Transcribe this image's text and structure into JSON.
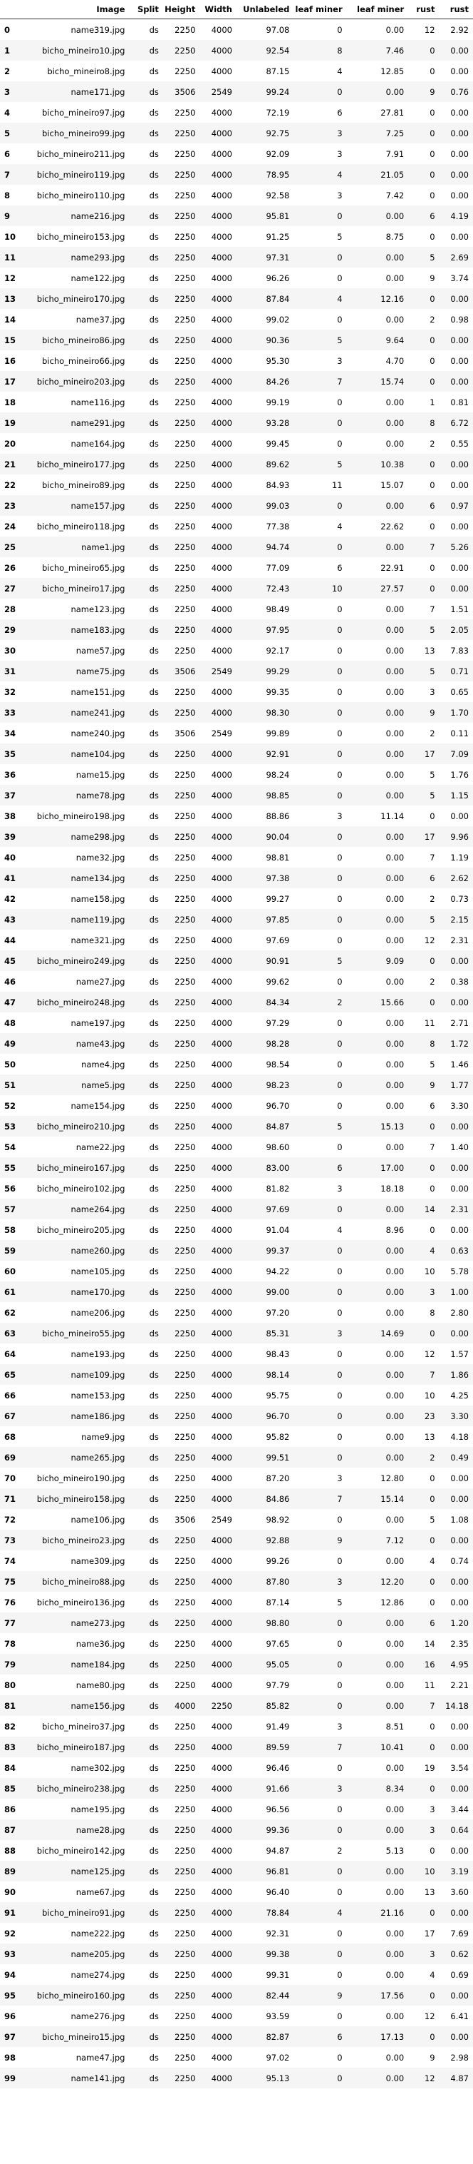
{
  "columns": [
    "",
    "Image",
    "Split",
    "Height",
    "Width",
    "Unlabeled",
    "leaf miner",
    "leaf miner",
    "rust",
    "rust"
  ],
  "rows": [
    [
      "0",
      "name319.jpg",
      "ds",
      "2250",
      "4000",
      "97.08",
      "0",
      "0.00",
      "12",
      "2.92"
    ],
    [
      "1",
      "bicho_mineiro10.jpg",
      "ds",
      "2250",
      "4000",
      "92.54",
      "8",
      "7.46",
      "0",
      "0.00"
    ],
    [
      "2",
      "bicho_mineiro8.jpg",
      "ds",
      "2250",
      "4000",
      "87.15",
      "4",
      "12.85",
      "0",
      "0.00"
    ],
    [
      "3",
      "name171.jpg",
      "ds",
      "3506",
      "2549",
      "99.24",
      "0",
      "0.00",
      "9",
      "0.76"
    ],
    [
      "4",
      "bicho_mineiro97.jpg",
      "ds",
      "2250",
      "4000",
      "72.19",
      "6",
      "27.81",
      "0",
      "0.00"
    ],
    [
      "5",
      "bicho_mineiro99.jpg",
      "ds",
      "2250",
      "4000",
      "92.75",
      "3",
      "7.25",
      "0",
      "0.00"
    ],
    [
      "6",
      "bicho_mineiro211.jpg",
      "ds",
      "2250",
      "4000",
      "92.09",
      "3",
      "7.91",
      "0",
      "0.00"
    ],
    [
      "7",
      "bicho_mineiro119.jpg",
      "ds",
      "2250",
      "4000",
      "78.95",
      "4",
      "21.05",
      "0",
      "0.00"
    ],
    [
      "8",
      "bicho_mineiro110.jpg",
      "ds",
      "2250",
      "4000",
      "92.58",
      "3",
      "7.42",
      "0",
      "0.00"
    ],
    [
      "9",
      "name216.jpg",
      "ds",
      "2250",
      "4000",
      "95.81",
      "0",
      "0.00",
      "6",
      "4.19"
    ],
    [
      "10",
      "bicho_mineiro153.jpg",
      "ds",
      "2250",
      "4000",
      "91.25",
      "5",
      "8.75",
      "0",
      "0.00"
    ],
    [
      "11",
      "name293.jpg",
      "ds",
      "2250",
      "4000",
      "97.31",
      "0",
      "0.00",
      "5",
      "2.69"
    ],
    [
      "12",
      "name122.jpg",
      "ds",
      "2250",
      "4000",
      "96.26",
      "0",
      "0.00",
      "9",
      "3.74"
    ],
    [
      "13",
      "bicho_mineiro170.jpg",
      "ds",
      "2250",
      "4000",
      "87.84",
      "4",
      "12.16",
      "0",
      "0.00"
    ],
    [
      "14",
      "name37.jpg",
      "ds",
      "2250",
      "4000",
      "99.02",
      "0",
      "0.00",
      "2",
      "0.98"
    ],
    [
      "15",
      "bicho_mineiro86.jpg",
      "ds",
      "2250",
      "4000",
      "90.36",
      "5",
      "9.64",
      "0",
      "0.00"
    ],
    [
      "16",
      "bicho_mineiro66.jpg",
      "ds",
      "2250",
      "4000",
      "95.30",
      "3",
      "4.70",
      "0",
      "0.00"
    ],
    [
      "17",
      "bicho_mineiro203.jpg",
      "ds",
      "2250",
      "4000",
      "84.26",
      "7",
      "15.74",
      "0",
      "0.00"
    ],
    [
      "18",
      "name116.jpg",
      "ds",
      "2250",
      "4000",
      "99.19",
      "0",
      "0.00",
      "1",
      "0.81"
    ],
    [
      "19",
      "name291.jpg",
      "ds",
      "2250",
      "4000",
      "93.28",
      "0",
      "0.00",
      "8",
      "6.72"
    ],
    [
      "20",
      "name164.jpg",
      "ds",
      "2250",
      "4000",
      "99.45",
      "0",
      "0.00",
      "2",
      "0.55"
    ],
    [
      "21",
      "bicho_mineiro177.jpg",
      "ds",
      "2250",
      "4000",
      "89.62",
      "5",
      "10.38",
      "0",
      "0.00"
    ],
    [
      "22",
      "bicho_mineiro89.jpg",
      "ds",
      "2250",
      "4000",
      "84.93",
      "11",
      "15.07",
      "0",
      "0.00"
    ],
    [
      "23",
      "name157.jpg",
      "ds",
      "2250",
      "4000",
      "99.03",
      "0",
      "0.00",
      "6",
      "0.97"
    ],
    [
      "24",
      "bicho_mineiro118.jpg",
      "ds",
      "2250",
      "4000",
      "77.38",
      "4",
      "22.62",
      "0",
      "0.00"
    ],
    [
      "25",
      "name1.jpg",
      "ds",
      "2250",
      "4000",
      "94.74",
      "0",
      "0.00",
      "7",
      "5.26"
    ],
    [
      "26",
      "bicho_mineiro65.jpg",
      "ds",
      "2250",
      "4000",
      "77.09",
      "6",
      "22.91",
      "0",
      "0.00"
    ],
    [
      "27",
      "bicho_mineiro17.jpg",
      "ds",
      "2250",
      "4000",
      "72.43",
      "10",
      "27.57",
      "0",
      "0.00"
    ],
    [
      "28",
      "name123.jpg",
      "ds",
      "2250",
      "4000",
      "98.49",
      "0",
      "0.00",
      "7",
      "1.51"
    ],
    [
      "29",
      "name183.jpg",
      "ds",
      "2250",
      "4000",
      "97.95",
      "0",
      "0.00",
      "5",
      "2.05"
    ],
    [
      "30",
      "name57.jpg",
      "ds",
      "2250",
      "4000",
      "92.17",
      "0",
      "0.00",
      "13",
      "7.83"
    ],
    [
      "31",
      "name75.jpg",
      "ds",
      "3506",
      "2549",
      "99.29",
      "0",
      "0.00",
      "5",
      "0.71"
    ],
    [
      "32",
      "name151.jpg",
      "ds",
      "2250",
      "4000",
      "99.35",
      "0",
      "0.00",
      "3",
      "0.65"
    ],
    [
      "33",
      "name241.jpg",
      "ds",
      "2250",
      "4000",
      "98.30",
      "0",
      "0.00",
      "9",
      "1.70"
    ],
    [
      "34",
      "name240.jpg",
      "ds",
      "3506",
      "2549",
      "99.89",
      "0",
      "0.00",
      "2",
      "0.11"
    ],
    [
      "35",
      "name104.jpg",
      "ds",
      "2250",
      "4000",
      "92.91",
      "0",
      "0.00",
      "17",
      "7.09"
    ],
    [
      "36",
      "name15.jpg",
      "ds",
      "2250",
      "4000",
      "98.24",
      "0",
      "0.00",
      "5",
      "1.76"
    ],
    [
      "37",
      "name78.jpg",
      "ds",
      "2250",
      "4000",
      "98.85",
      "0",
      "0.00",
      "5",
      "1.15"
    ],
    [
      "38",
      "bicho_mineiro198.jpg",
      "ds",
      "2250",
      "4000",
      "88.86",
      "3",
      "11.14",
      "0",
      "0.00"
    ],
    [
      "39",
      "name298.jpg",
      "ds",
      "2250",
      "4000",
      "90.04",
      "0",
      "0.00",
      "17",
      "9.96"
    ],
    [
      "40",
      "name32.jpg",
      "ds",
      "2250",
      "4000",
      "98.81",
      "0",
      "0.00",
      "7",
      "1.19"
    ],
    [
      "41",
      "name134.jpg",
      "ds",
      "2250",
      "4000",
      "97.38",
      "0",
      "0.00",
      "6",
      "2.62"
    ],
    [
      "42",
      "name158.jpg",
      "ds",
      "2250",
      "4000",
      "99.27",
      "0",
      "0.00",
      "2",
      "0.73"
    ],
    [
      "43",
      "name119.jpg",
      "ds",
      "2250",
      "4000",
      "97.85",
      "0",
      "0.00",
      "5",
      "2.15"
    ],
    [
      "44",
      "name321.jpg",
      "ds",
      "2250",
      "4000",
      "97.69",
      "0",
      "0.00",
      "12",
      "2.31"
    ],
    [
      "45",
      "bicho_mineiro249.jpg",
      "ds",
      "2250",
      "4000",
      "90.91",
      "5",
      "9.09",
      "0",
      "0.00"
    ],
    [
      "46",
      "name27.jpg",
      "ds",
      "2250",
      "4000",
      "99.62",
      "0",
      "0.00",
      "2",
      "0.38"
    ],
    [
      "47",
      "bicho_mineiro248.jpg",
      "ds",
      "2250",
      "4000",
      "84.34",
      "2",
      "15.66",
      "0",
      "0.00"
    ],
    [
      "48",
      "name197.jpg",
      "ds",
      "2250",
      "4000",
      "97.29",
      "0",
      "0.00",
      "11",
      "2.71"
    ],
    [
      "49",
      "name43.jpg",
      "ds",
      "2250",
      "4000",
      "98.28",
      "0",
      "0.00",
      "8",
      "1.72"
    ],
    [
      "50",
      "name4.jpg",
      "ds",
      "2250",
      "4000",
      "98.54",
      "0",
      "0.00",
      "5",
      "1.46"
    ],
    [
      "51",
      "name5.jpg",
      "ds",
      "2250",
      "4000",
      "98.23",
      "0",
      "0.00",
      "9",
      "1.77"
    ],
    [
      "52",
      "name154.jpg",
      "ds",
      "2250",
      "4000",
      "96.70",
      "0",
      "0.00",
      "6",
      "3.30"
    ],
    [
      "53",
      "bicho_mineiro210.jpg",
      "ds",
      "2250",
      "4000",
      "84.87",
      "5",
      "15.13",
      "0",
      "0.00"
    ],
    [
      "54",
      "name22.jpg",
      "ds",
      "2250",
      "4000",
      "98.60",
      "0",
      "0.00",
      "7",
      "1.40"
    ],
    [
      "55",
      "bicho_mineiro167.jpg",
      "ds",
      "2250",
      "4000",
      "83.00",
      "6",
      "17.00",
      "0",
      "0.00"
    ],
    [
      "56",
      "bicho_mineiro102.jpg",
      "ds",
      "2250",
      "4000",
      "81.82",
      "3",
      "18.18",
      "0",
      "0.00"
    ],
    [
      "57",
      "name264.jpg",
      "ds",
      "2250",
      "4000",
      "97.69",
      "0",
      "0.00",
      "14",
      "2.31"
    ],
    [
      "58",
      "bicho_mineiro205.jpg",
      "ds",
      "2250",
      "4000",
      "91.04",
      "4",
      "8.96",
      "0",
      "0.00"
    ],
    [
      "59",
      "name260.jpg",
      "ds",
      "2250",
      "4000",
      "99.37",
      "0",
      "0.00",
      "4",
      "0.63"
    ],
    [
      "60",
      "name105.jpg",
      "ds",
      "2250",
      "4000",
      "94.22",
      "0",
      "0.00",
      "10",
      "5.78"
    ],
    [
      "61",
      "name170.jpg",
      "ds",
      "2250",
      "4000",
      "99.00",
      "0",
      "0.00",
      "3",
      "1.00"
    ],
    [
      "62",
      "name206.jpg",
      "ds",
      "2250",
      "4000",
      "97.20",
      "0",
      "0.00",
      "8",
      "2.80"
    ],
    [
      "63",
      "bicho_mineiro55.jpg",
      "ds",
      "2250",
      "4000",
      "85.31",
      "3",
      "14.69",
      "0",
      "0.00"
    ],
    [
      "64",
      "name193.jpg",
      "ds",
      "2250",
      "4000",
      "98.43",
      "0",
      "0.00",
      "12",
      "1.57"
    ],
    [
      "65",
      "name109.jpg",
      "ds",
      "2250",
      "4000",
      "98.14",
      "0",
      "0.00",
      "7",
      "1.86"
    ],
    [
      "66",
      "name153.jpg",
      "ds",
      "2250",
      "4000",
      "95.75",
      "0",
      "0.00",
      "10",
      "4.25"
    ],
    [
      "67",
      "name186.jpg",
      "ds",
      "2250",
      "4000",
      "96.70",
      "0",
      "0.00",
      "23",
      "3.30"
    ],
    [
      "68",
      "name9.jpg",
      "ds",
      "2250",
      "4000",
      "95.82",
      "0",
      "0.00",
      "13",
      "4.18"
    ],
    [
      "69",
      "name265.jpg",
      "ds",
      "2250",
      "4000",
      "99.51",
      "0",
      "0.00",
      "2",
      "0.49"
    ],
    [
      "70",
      "bicho_mineiro190.jpg",
      "ds",
      "2250",
      "4000",
      "87.20",
      "3",
      "12.80",
      "0",
      "0.00"
    ],
    [
      "71",
      "bicho_mineiro158.jpg",
      "ds",
      "2250",
      "4000",
      "84.86",
      "7",
      "15.14",
      "0",
      "0.00"
    ],
    [
      "72",
      "name106.jpg",
      "ds",
      "3506",
      "2549",
      "98.92",
      "0",
      "0.00",
      "5",
      "1.08"
    ],
    [
      "73",
      "bicho_mineiro23.jpg",
      "ds",
      "2250",
      "4000",
      "92.88",
      "9",
      "7.12",
      "0",
      "0.00"
    ],
    [
      "74",
      "name309.jpg",
      "ds",
      "2250",
      "4000",
      "99.26",
      "0",
      "0.00",
      "4",
      "0.74"
    ],
    [
      "75",
      "bicho_mineiro88.jpg",
      "ds",
      "2250",
      "4000",
      "87.80",
      "3",
      "12.20",
      "0",
      "0.00"
    ],
    [
      "76",
      "bicho_mineiro136.jpg",
      "ds",
      "2250",
      "4000",
      "87.14",
      "5",
      "12.86",
      "0",
      "0.00"
    ],
    [
      "77",
      "name273.jpg",
      "ds",
      "2250",
      "4000",
      "98.80",
      "0",
      "0.00",
      "6",
      "1.20"
    ],
    [
      "78",
      "name36.jpg",
      "ds",
      "2250",
      "4000",
      "97.65",
      "0",
      "0.00",
      "14",
      "2.35"
    ],
    [
      "79",
      "name184.jpg",
      "ds",
      "2250",
      "4000",
      "95.05",
      "0",
      "0.00",
      "16",
      "4.95"
    ],
    [
      "80",
      "name80.jpg",
      "ds",
      "2250",
      "4000",
      "97.79",
      "0",
      "0.00",
      "11",
      "2.21"
    ],
    [
      "81",
      "name156.jpg",
      "ds",
      "4000",
      "2250",
      "85.82",
      "0",
      "0.00",
      "7",
      "14.18"
    ],
    [
      "82",
      "bicho_mineiro37.jpg",
      "ds",
      "2250",
      "4000",
      "91.49",
      "3",
      "8.51",
      "0",
      "0.00"
    ],
    [
      "83",
      "bicho_mineiro187.jpg",
      "ds",
      "2250",
      "4000",
      "89.59",
      "7",
      "10.41",
      "0",
      "0.00"
    ],
    [
      "84",
      "name302.jpg",
      "ds",
      "2250",
      "4000",
      "96.46",
      "0",
      "0.00",
      "19",
      "3.54"
    ],
    [
      "85",
      "bicho_mineiro238.jpg",
      "ds",
      "2250",
      "4000",
      "91.66",
      "3",
      "8.34",
      "0",
      "0.00"
    ],
    [
      "86",
      "name195.jpg",
      "ds",
      "2250",
      "4000",
      "96.56",
      "0",
      "0.00",
      "3",
      "3.44"
    ],
    [
      "87",
      "name28.jpg",
      "ds",
      "2250",
      "4000",
      "99.36",
      "0",
      "0.00",
      "3",
      "0.64"
    ],
    [
      "88",
      "bicho_mineiro142.jpg",
      "ds",
      "2250",
      "4000",
      "94.87",
      "2",
      "5.13",
      "0",
      "0.00"
    ],
    [
      "89",
      "name125.jpg",
      "ds",
      "2250",
      "4000",
      "96.81",
      "0",
      "0.00",
      "10",
      "3.19"
    ],
    [
      "90",
      "name67.jpg",
      "ds",
      "2250",
      "4000",
      "96.40",
      "0",
      "0.00",
      "13",
      "3.60"
    ],
    [
      "91",
      "bicho_mineiro91.jpg",
      "ds",
      "2250",
      "4000",
      "78.84",
      "4",
      "21.16",
      "0",
      "0.00"
    ],
    [
      "92",
      "name222.jpg",
      "ds",
      "2250",
      "4000",
      "92.31",
      "0",
      "0.00",
      "17",
      "7.69"
    ],
    [
      "93",
      "name205.jpg",
      "ds",
      "2250",
      "4000",
      "99.38",
      "0",
      "0.00",
      "3",
      "0.62"
    ],
    [
      "94",
      "name274.jpg",
      "ds",
      "2250",
      "4000",
      "99.31",
      "0",
      "0.00",
      "4",
      "0.69"
    ],
    [
      "95",
      "bicho_mineiro160.jpg",
      "ds",
      "2250",
      "4000",
      "82.44",
      "9",
      "17.56",
      "0",
      "0.00"
    ],
    [
      "96",
      "name276.jpg",
      "ds",
      "2250",
      "4000",
      "93.59",
      "0",
      "0.00",
      "12",
      "6.41"
    ],
    [
      "97",
      "bicho_mineiro15.jpg",
      "ds",
      "2250",
      "4000",
      "82.87",
      "6",
      "17.13",
      "0",
      "0.00"
    ],
    [
      "98",
      "name47.jpg",
      "ds",
      "2250",
      "4000",
      "97.02",
      "0",
      "0.00",
      "9",
      "2.98"
    ],
    [
      "99",
      "name141.jpg",
      "ds",
      "2250",
      "4000",
      "95.13",
      "0",
      "0.00",
      "12",
      "4.87"
    ]
  ]
}
